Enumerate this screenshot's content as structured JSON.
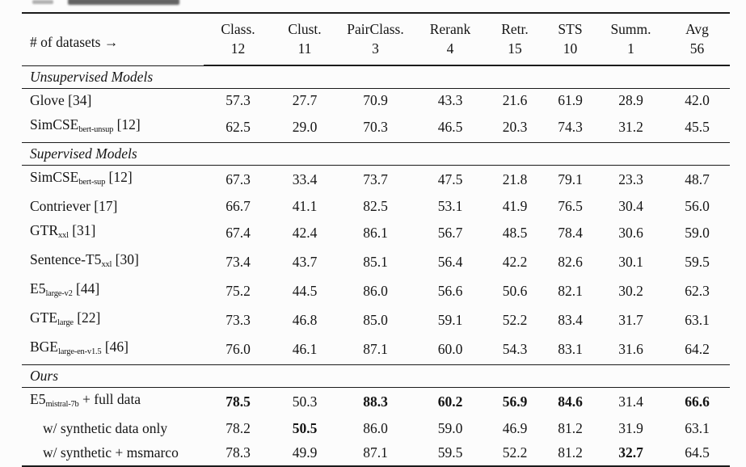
{
  "colors": {
    "rule": "#1b1b1b",
    "text": "#151515",
    "background": "#fcfcfc"
  },
  "table": {
    "datasets_label": "# of datasets →",
    "columns": [
      {
        "name": "Class.",
        "count": "12"
      },
      {
        "name": "Clust.",
        "count": "11"
      },
      {
        "name": "PairClass.",
        "count": "3"
      },
      {
        "name": "Rerank",
        "count": "4"
      },
      {
        "name": "Retr.",
        "count": "15"
      },
      {
        "name": "STS",
        "count": "10"
      },
      {
        "name": "Summ.",
        "count": "1"
      },
      {
        "name": "Avg",
        "count": "56"
      }
    ],
    "sections": [
      {
        "title": "Unsupervised Models",
        "rows": [
          {
            "label": {
              "main": "Glove",
              "sub": "",
              "suffix": " [34]"
            },
            "indent": false,
            "values": [
              "57.3",
              "27.7",
              "70.9",
              "43.3",
              "21.6",
              "61.9",
              "28.9",
              "42.0"
            ],
            "bold": []
          },
          {
            "label": {
              "main": "SimCSE",
              "sub": "bert-unsup",
              "suffix": " [12]"
            },
            "indent": false,
            "values": [
              "62.5",
              "29.0",
              "70.3",
              "46.5",
              "20.3",
              "74.3",
              "31.2",
              "45.5"
            ],
            "bold": []
          }
        ]
      },
      {
        "title": "Supervised Models",
        "rows": [
          {
            "label": {
              "main": "SimCSE",
              "sub": "bert-sup",
              "suffix": " [12]"
            },
            "indent": false,
            "values": [
              "67.3",
              "33.4",
              "73.7",
              "47.5",
              "21.8",
              "79.1",
              "23.3",
              "48.7"
            ],
            "bold": []
          },
          {
            "label": {
              "main": "Contriever",
              "sub": "",
              "suffix": " [17]"
            },
            "indent": false,
            "values": [
              "66.7",
              "41.1",
              "82.5",
              "53.1",
              "41.9",
              "76.5",
              "30.4",
              "56.0"
            ],
            "bold": []
          },
          {
            "label": {
              "main": "GTR",
              "sub": "xxl",
              "suffix": " [31]"
            },
            "indent": false,
            "values": [
              "67.4",
              "42.4",
              "86.1",
              "56.7",
              "48.5",
              "78.4",
              "30.6",
              "59.0"
            ],
            "bold": []
          },
          {
            "label": {
              "main": "Sentence-T5",
              "sub": "xxl",
              "suffix": " [30]"
            },
            "indent": false,
            "values": [
              "73.4",
              "43.7",
              "85.1",
              "56.4",
              "42.2",
              "82.6",
              "30.1",
              "59.5"
            ],
            "bold": []
          },
          {
            "label": {
              "main": "E5",
              "sub": "large-v2",
              "suffix": " [44]"
            },
            "indent": false,
            "values": [
              "75.2",
              "44.5",
              "86.0",
              "56.6",
              "50.6",
              "82.1",
              "30.2",
              "62.3"
            ],
            "bold": []
          },
          {
            "label": {
              "main": "GTE",
              "sub": "large",
              "suffix": " [22]"
            },
            "indent": false,
            "values": [
              "73.3",
              "46.8",
              "85.0",
              "59.1",
              "52.2",
              "83.4",
              "31.7",
              "63.1"
            ],
            "bold": []
          },
          {
            "label": {
              "main": "BGE",
              "sub": "large-en-v1.5",
              "suffix": " [46]"
            },
            "indent": false,
            "values": [
              "76.0",
              "46.1",
              "87.1",
              "60.0",
              "54.3",
              "83.1",
              "31.6",
              "64.2"
            ],
            "bold": []
          }
        ]
      },
      {
        "title": "Ours",
        "rows": [
          {
            "label": {
              "main": "E5",
              "sub": "mistral-7b",
              "suffix": " + full data"
            },
            "indent": false,
            "values": [
              "78.5",
              "50.3",
              "88.3",
              "60.2",
              "56.9",
              "84.6",
              "31.4",
              "66.6"
            ],
            "bold": [
              0,
              2,
              3,
              4,
              5,
              7
            ]
          },
          {
            "label": {
              "main": "w/ synthetic data only",
              "sub": "",
              "suffix": ""
            },
            "indent": true,
            "values": [
              "78.2",
              "50.5",
              "86.0",
              "59.0",
              "46.9",
              "81.2",
              "31.9",
              "63.1"
            ],
            "bold": [
              1
            ]
          },
          {
            "label": {
              "main": "w/ synthetic + msmarco",
              "sub": "",
              "suffix": ""
            },
            "indent": true,
            "values": [
              "78.3",
              "49.9",
              "87.1",
              "59.5",
              "52.2",
              "81.2",
              "32.7",
              "64.5"
            ],
            "bold": [
              6
            ]
          }
        ]
      }
    ]
  }
}
